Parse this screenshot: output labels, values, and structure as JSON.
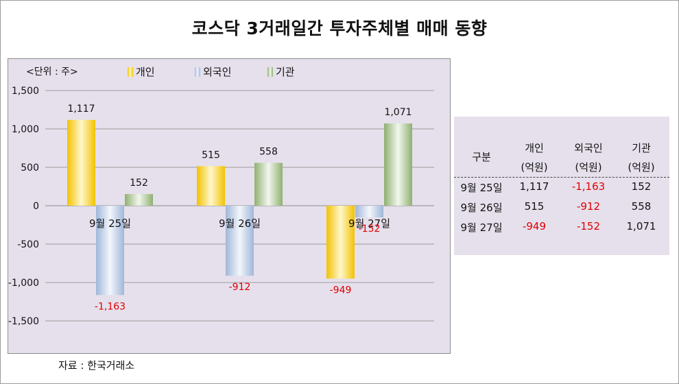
{
  "title": "코스닥 3거래일간 투자주체별 매매 동향",
  "unit_note": "<단위 : 주>",
  "source": "자료 : 한국거래소",
  "colors": {
    "individual": "#f2c200",
    "foreign": "#9fb7d9",
    "institution": "#8fb070",
    "negative_text": "#e00000",
    "panel_bg": "#e6e0ec"
  },
  "chart_data": {
    "type": "bar",
    "categories": [
      "9월 25일",
      "9월 26일",
      "9월 27일"
    ],
    "series": [
      {
        "name": "개인",
        "values": [
          1117,
          515,
          -949
        ]
      },
      {
        "name": "외국인",
        "values": [
          -1163,
          -912,
          -152
        ]
      },
      {
        "name": "기관",
        "values": [
          152,
          558,
          1071
        ]
      }
    ],
    "data_labels": [
      [
        "1,117",
        "515",
        "-949"
      ],
      [
        "-1,163",
        "-912",
        "-152"
      ],
      [
        "152",
        "558",
        "1,071"
      ]
    ],
    "yticks": [
      "1,500",
      "1,000",
      "500",
      "0",
      "-500",
      "-1,000",
      "-1,500"
    ],
    "ytick_values": [
      1500,
      1000,
      500,
      0,
      -500,
      -1000,
      -1500
    ],
    "ylim": [
      -1500,
      1500
    ],
    "legend_position": "top",
    "grid": true
  },
  "table": {
    "headers": [
      {
        "line1": "구분",
        "line2": ""
      },
      {
        "line1": "개인",
        "line2": "(억원)"
      },
      {
        "line1": "외국인",
        "line2": "(억원)"
      },
      {
        "line1": "기관",
        "line2": "(억원)"
      }
    ],
    "rows": [
      [
        "9월 25일",
        "1,117",
        "-1,163",
        "152"
      ],
      [
        "9월 26일",
        "515",
        "-912",
        "558"
      ],
      [
        "9월 27일",
        "-949",
        "-152",
        "1,071"
      ]
    ]
  }
}
